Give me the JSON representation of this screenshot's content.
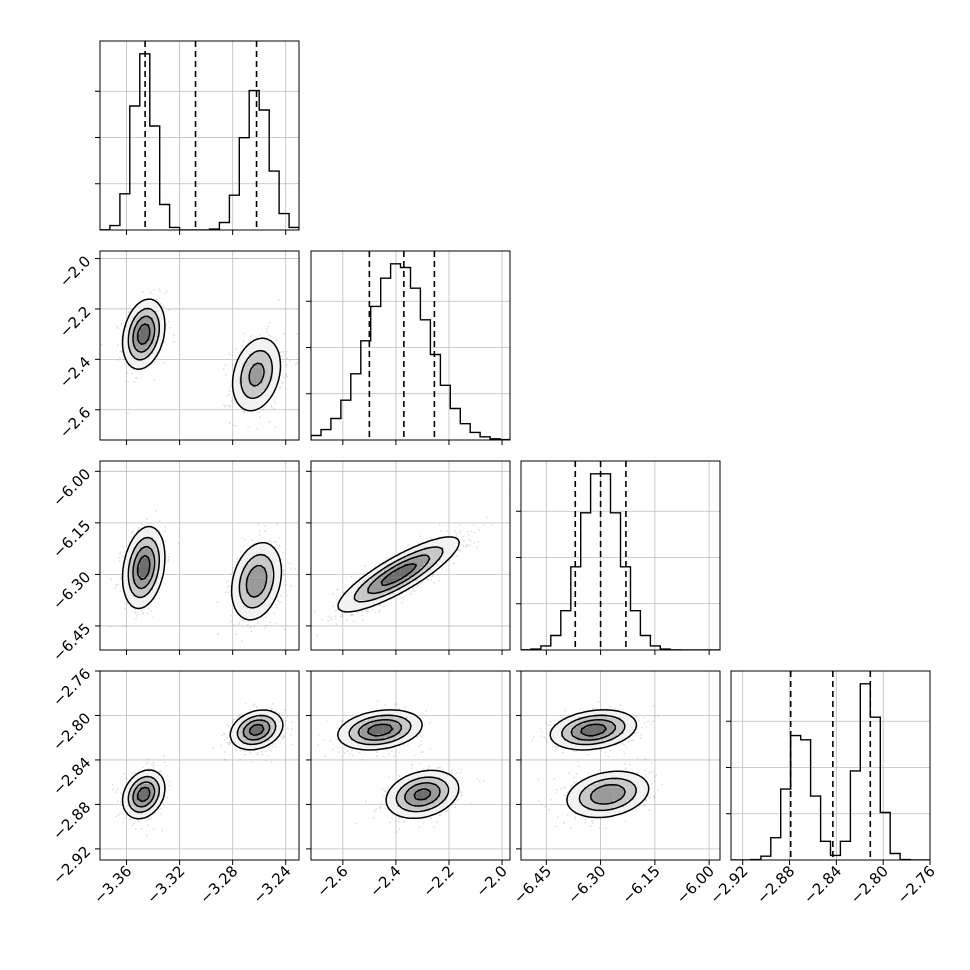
{
  "chart_data": {
    "type": "corner",
    "grid": true,
    "parameters": [
      {
        "range": [
          -3.38,
          -3.23
        ],
        "ticks": [
          -3.36,
          -3.32,
          -3.28,
          -3.24
        ],
        "tick_labels": [
          "−3.36",
          "−3.32",
          "−3.28",
          "−3.24"
        ],
        "quantiles": [
          -3.346,
          -3.308,
          -3.262
        ],
        "modes": [
          {
            "center": -3.347,
            "sigma": 0.008,
            "weight": 0.5
          },
          {
            "center": -3.262,
            "sigma": 0.01,
            "weight": 0.5
          }
        ]
      },
      {
        "range": [
          -2.72,
          -1.97
        ],
        "ticks": [
          -2.6,
          -2.4,
          -2.2,
          -2.0
        ],
        "tick_labels": [
          "−2.6",
          "−2.4",
          "−2.2",
          "−2.0"
        ],
        "quantiles": [
          -2.5,
          -2.37,
          -2.255
        ],
        "modes": [
          {
            "center": -2.39,
            "sigma": 0.115,
            "weight": 1
          }
        ]
      },
      {
        "range": [
          -6.52,
          -5.97
        ],
        "ticks": [
          -6.45,
          -6.3,
          -6.15,
          -6.0
        ],
        "tick_labels": [
          "−6.45",
          "−6.30",
          "−6.15",
          "−6.00"
        ],
        "quantiles": [
          -6.37,
          -6.3,
          -6.23
        ],
        "modes": [
          {
            "center": -6.3,
            "sigma": 0.055,
            "weight": 1
          }
        ]
      },
      {
        "range": [
          -2.93,
          -2.76
        ],
        "ticks": [
          -2.92,
          -2.88,
          -2.84,
          -2.8,
          -2.76
        ],
        "tick_labels": [
          "−2.92",
          "−2.88",
          "−2.84",
          "−2.80",
          "−2.76"
        ],
        "quantiles": [
          -2.879,
          -2.843,
          -2.811
        ],
        "modes": [
          {
            "center": -2.871,
            "sigma": 0.011,
            "weight": 0.47
          },
          {
            "center": -2.813,
            "sigma": 0.009,
            "weight": 0.53
          }
        ]
      }
    ],
    "components": [
      {
        "weight": 0.5,
        "mean": [
          -3.347,
          -2.3,
          -6.28,
          -2.871
        ],
        "sd": [
          0.008,
          0.07,
          0.06,
          0.011
        ]
      },
      {
        "weight": 0.5,
        "mean": [
          -3.262,
          -2.46,
          -6.32,
          -2.813
        ],
        "sd": [
          0.01,
          0.08,
          0.06,
          0.009
        ]
      }
    ],
    "pair_correlations": {
      "1-2": 0.85,
      "1-3": -0.6,
      "2-3": -0.3
    }
  }
}
